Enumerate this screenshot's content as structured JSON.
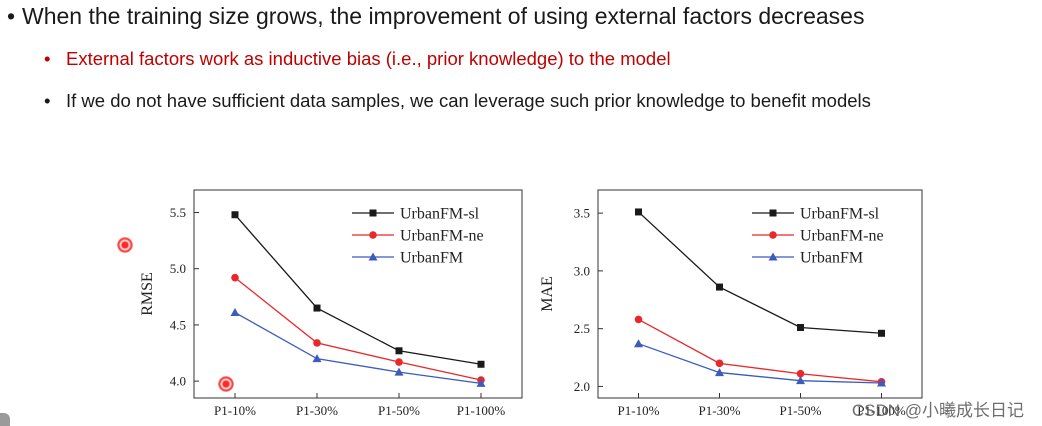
{
  "slide": {
    "main_bullet": "When the training size grows, the improvement of using external factors decreases",
    "sub_bullets": [
      "External factors work as inductive bias (i.e., prior knowledge) to the model",
      "If we do not have sufficient data samples, we can leverage such prior knowledge to benefit models"
    ],
    "bullet_symbol": "•",
    "watermark": "CSDN @小曦成长日记",
    "colors": {
      "highlight_text": "#c00000",
      "sl": "#1a1a1a",
      "ne": "#e8282a",
      "base": "#3b5bbf"
    }
  },
  "chart_data": [
    {
      "type": "line",
      "categories": [
        "P1-10%",
        "P1-30%",
        "P1-50%",
        "P1-100%"
      ],
      "ylabel": "RMSE",
      "ylim": [
        3.85,
        5.7
      ],
      "yticks": [
        "4.0",
        "4.5",
        "5.0",
        "5.5"
      ],
      "series": [
        {
          "name": "UrbanFM-sl",
          "marker": "square",
          "values": [
            5.48,
            4.65,
            4.27,
            4.15
          ]
        },
        {
          "name": "UrbanFM-ne",
          "marker": "circle",
          "values": [
            4.92,
            4.34,
            4.17,
            4.01
          ]
        },
        {
          "name": "UrbanFM",
          "marker": "triangle",
          "values": [
            4.61,
            4.2,
            4.08,
            3.98
          ]
        }
      ]
    },
    {
      "type": "line",
      "categories": [
        "P1-10%",
        "P1-30%",
        "P1-50%",
        "P1-100%"
      ],
      "ylabel": "MAE",
      "ylim": [
        1.9,
        3.7
      ],
      "yticks": [
        "2.0",
        "2.5",
        "3.0",
        "3.5"
      ],
      "series": [
        {
          "name": "UrbanFM-sl",
          "marker": "square",
          "values": [
            3.51,
            2.86,
            2.51,
            2.46
          ]
        },
        {
          "name": "UrbanFM-ne",
          "marker": "circle",
          "values": [
            2.58,
            2.2,
            2.11,
            2.04
          ]
        },
        {
          "name": "UrbanFM",
          "marker": "triangle",
          "values": [
            2.37,
            2.12,
            2.05,
            2.03
          ]
        }
      ]
    }
  ]
}
